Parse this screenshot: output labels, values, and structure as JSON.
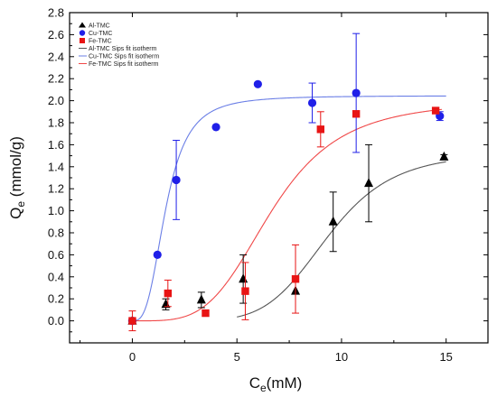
{
  "chart_data": {
    "type": "scatter",
    "xlabel": {
      "main": "C",
      "sub": "e",
      "unit": "(mM)"
    },
    "ylabel": {
      "main": "Q",
      "sub": "e",
      "unit": " (mmol/g)"
    },
    "xlim": [
      -3,
      17
    ],
    "ylim": [
      -0.2,
      2.8
    ],
    "x_ticks": [
      0,
      5,
      10,
      15
    ],
    "y_ticks": [
      0.0,
      0.2,
      0.4,
      0.6,
      0.8,
      1.0,
      1.2,
      1.4,
      1.6,
      1.8,
      2.0,
      2.2,
      2.4,
      2.6,
      2.8
    ],
    "y_tick_labels": [
      "0.0",
      "0.2",
      "0.4",
      "0.6",
      "0.8",
      "1.0",
      "1.2",
      "1.4",
      "1.6",
      "1.8",
      "2.0",
      "2.2",
      "2.4",
      "2.6",
      "2.8"
    ],
    "legend_position": "top-left",
    "series": [
      {
        "name": "Al-TMC",
        "marker": "triangle",
        "color": "#000000",
        "points": [
          {
            "x": 0.0,
            "y": 0.0,
            "err": 0.0
          },
          {
            "x": 1.6,
            "y": 0.15,
            "err": 0.05
          },
          {
            "x": 3.3,
            "y": 0.19,
            "err": 0.07
          },
          {
            "x": 5.3,
            "y": 0.38,
            "err": 0.22
          },
          {
            "x": 7.8,
            "y": 0.27,
            "err": 0.0
          },
          {
            "x": 9.6,
            "y": 0.9,
            "err": 0.27
          },
          {
            "x": 11.3,
            "y": 1.25,
            "err": 0.35
          },
          {
            "x": 14.9,
            "y": 1.49,
            "err": 0.02
          }
        ]
      },
      {
        "name": "Cu-TMC",
        "marker": "circle",
        "color": "#1f1fe8",
        "points": [
          {
            "x": 0.0,
            "y": 0.0,
            "err": 0.0
          },
          {
            "x": 1.2,
            "y": 0.6,
            "err": 0.0
          },
          {
            "x": 2.1,
            "y": 1.28,
            "err": 0.36
          },
          {
            "x": 4.0,
            "y": 1.76,
            "err": 0.0
          },
          {
            "x": 6.0,
            "y": 2.15,
            "err": 0.0
          },
          {
            "x": 8.6,
            "y": 1.98,
            "err": 0.18
          },
          {
            "x": 10.7,
            "y": 2.07,
            "err": 0.54
          },
          {
            "x": 14.7,
            "y": 1.86,
            "err": 0.04
          }
        ]
      },
      {
        "name": "Fe-TMC",
        "marker": "square",
        "color": "#e81414",
        "points": [
          {
            "x": 0.0,
            "y": 0.0,
            "err": 0.09
          },
          {
            "x": 1.7,
            "y": 0.25,
            "err": 0.12
          },
          {
            "x": 3.5,
            "y": 0.07,
            "err": 0.02
          },
          {
            "x": 5.4,
            "y": 0.27,
            "err": 0.26
          },
          {
            "x": 7.8,
            "y": 0.38,
            "err": 0.31
          },
          {
            "x": 9.0,
            "y": 1.74,
            "err": 0.16
          },
          {
            "x": 10.7,
            "y": 1.88,
            "err": 0.0
          },
          {
            "x": 14.5,
            "y": 1.91,
            "err": 0.0
          }
        ]
      }
    ],
    "fits": [
      {
        "name": "Al-TMC Sips fit isotherm",
        "color": "#555555",
        "qmax": 1.53,
        "k": 0.107,
        "n": 6.0,
        "x_range": [
          5.0,
          15.0
        ]
      },
      {
        "name": "Cu-TMC Sips fit isotherm",
        "color": "#6b7fe6",
        "qmax": 2.045,
        "k": 0.624,
        "n": 3.0,
        "x_range": [
          0.0,
          15.0
        ]
      },
      {
        "name": "Fe-TMC Sips fit isotherm",
        "color": "#f04848",
        "qmax": 2.0,
        "k": 0.15,
        "n": 4.0,
        "x_range": [
          0.0,
          14.8
        ]
      }
    ]
  }
}
